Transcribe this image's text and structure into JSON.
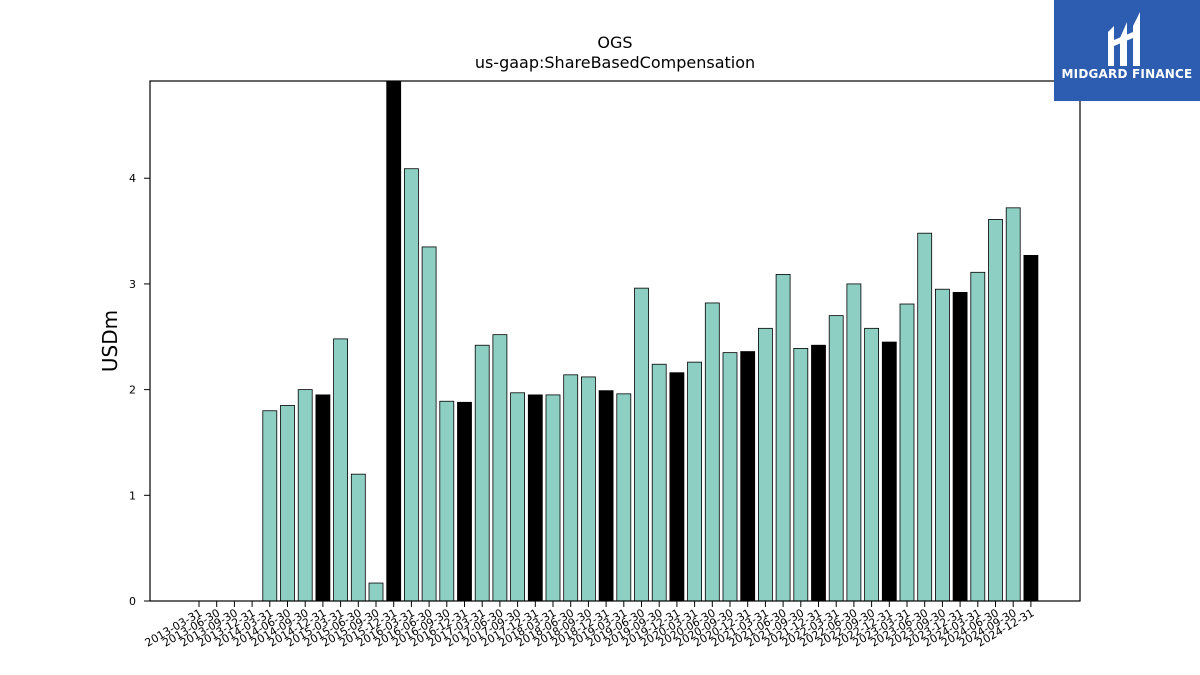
{
  "logo": {
    "text": "MIDGARD FINANCE",
    "icon": "midgard-logo-mark",
    "background": "#2d5db0",
    "color": "#ffffff"
  },
  "chart_data": {
    "type": "bar",
    "title": "OGS",
    "subtitle": "us-gaap:ShareBasedCompensation",
    "xlabel": "",
    "ylabel": "USDm",
    "ylim": [
      0,
      4.92
    ],
    "yticks": [
      0,
      1,
      2,
      3,
      4
    ],
    "grid": false,
    "colors": {
      "quarter": "#8ecfc3",
      "year_end": "#000000",
      "edge": "#000000"
    },
    "categories": [
      "2013-03-31",
      "2013-06-30",
      "2013-09-30",
      "2013-12-31",
      "2014-03-31",
      "2014-06-30",
      "2014-09-30",
      "2014-12-31",
      "2015-03-31",
      "2015-06-30",
      "2015-09-30",
      "2015-12-31",
      "2016-03-31",
      "2016-06-30",
      "2016-09-30",
      "2016-12-31",
      "2017-03-31",
      "2017-06-30",
      "2017-09-30",
      "2017-12-31",
      "2018-03-31",
      "2018-06-30",
      "2018-09-30",
      "2018-12-31",
      "2019-03-31",
      "2019-06-30",
      "2019-09-30",
      "2019-12-31",
      "2020-03-31",
      "2020-06-30",
      "2020-09-30",
      "2020-12-31",
      "2021-03-31",
      "2021-06-30",
      "2021-09-30",
      "2021-12-31",
      "2022-03-31",
      "2022-06-30",
      "2022-09-30",
      "2022-12-31",
      "2023-03-31",
      "2023-06-30",
      "2023-09-30",
      "2023-12-31",
      "2024-03-31",
      "2024-06-30",
      "2024-09-30",
      "2024-12-31"
    ],
    "values": [
      0,
      0,
      0,
      0,
      1.8,
      1.85,
      2.0,
      1.95,
      2.48,
      1.2,
      0.17,
      4.92,
      4.09,
      3.35,
      1.89,
      1.88,
      2.42,
      2.52,
      1.97,
      1.95,
      1.95,
      2.14,
      2.12,
      1.99,
      1.96,
      2.96,
      2.24,
      2.16,
      2.26,
      2.82,
      2.35,
      2.36,
      2.58,
      3.09,
      2.39,
      2.42,
      2.7,
      3.0,
      2.58,
      2.45,
      2.81,
      3.48,
      2.95,
      2.92,
      3.11,
      3.61,
      3.72,
      3.27
    ]
  }
}
